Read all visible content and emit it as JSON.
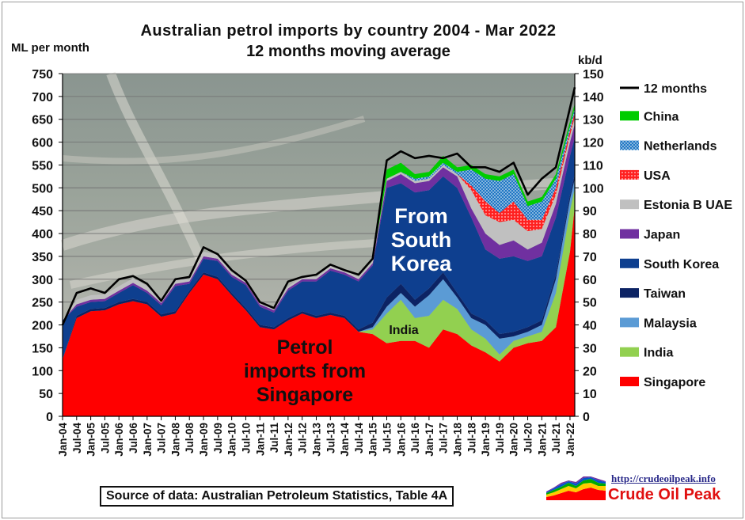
{
  "chart_data": {
    "type": "area",
    "title": "Australian petrol imports by country 2004 - Mar 2022",
    "subtitle": "12 months moving average",
    "ylabel_left": "ML per month",
    "ylabel_right": "kb/d",
    "ylim_left": [
      0,
      750
    ],
    "ylim_right": [
      0,
      150
    ],
    "yticks_left": [
      "0",
      "50",
      "100",
      "150",
      "200",
      "250",
      "300",
      "350",
      "400",
      "450",
      "500",
      "550",
      "600",
      "650",
      "700",
      "750"
    ],
    "yticks_right": [
      "0",
      "10",
      "20",
      "30",
      "40",
      "50",
      "60",
      "70",
      "80",
      "90",
      "100",
      "110",
      "120",
      "130",
      "140",
      "150"
    ],
    "xticks": [
      "Jan-04",
      "Jul-04",
      "Jan-05",
      "Jul-05",
      "Jan-06",
      "Jul-06",
      "Jan-07",
      "Jul-07",
      "Jan-08",
      "Jul-08",
      "Jan-09",
      "Jul-09",
      "Jan-10",
      "Jul-10",
      "Jan-11",
      "Jul-11",
      "Jan-12",
      "Jul-12",
      "Jan-13",
      "Jul-13",
      "Jan-14",
      "Jul-14",
      "Jan-15",
      "Jul-15",
      "Jan-16",
      "Jul-16",
      "Jan-17",
      "Jul-17",
      "Jan-18",
      "Jul-18",
      "Jan-19",
      "Jul-19",
      "Jan-20",
      "Jul-20",
      "Jan-21",
      "Jul-21",
      "Jan-22"
    ],
    "grid": true,
    "legend_position": "right",
    "x": [
      2004.0,
      2004.5,
      2005.0,
      2005.5,
      2006.0,
      2006.5,
      2007.0,
      2007.5,
      2008.0,
      2008.5,
      2009.0,
      2009.5,
      2010.0,
      2010.5,
      2011.0,
      2011.5,
      2012.0,
      2012.5,
      2013.0,
      2013.5,
      2014.0,
      2014.5,
      2015.0,
      2015.5,
      2016.0,
      2016.5,
      2017.0,
      2017.5,
      2018.0,
      2018.5,
      2019.0,
      2019.5,
      2020.0,
      2020.5,
      2021.0,
      2021.5,
      2022.0,
      2022.17
    ],
    "series": [
      {
        "name": "Singapore",
        "color": "#ff0000",
        "values": [
          125,
          215,
          230,
          232,
          245,
          252,
          245,
          218,
          225,
          270,
          310,
          300,
          265,
          232,
          195,
          190,
          210,
          225,
          215,
          222,
          215,
          185,
          180,
          160,
          165,
          165,
          150,
          190,
          180,
          155,
          140,
          120,
          150,
          160,
          165,
          195,
          360,
          460
        ]
      },
      {
        "name": "India",
        "color": "#92d050",
        "values": [
          0,
          0,
          0,
          0,
          0,
          0,
          0,
          0,
          0,
          0,
          0,
          0,
          0,
          0,
          0,
          0,
          0,
          0,
          0,
          0,
          0,
          0,
          10,
          65,
          90,
          50,
          70,
          65,
          55,
          35,
          30,
          15,
          15,
          15,
          20,
          75,
          90,
          40
        ]
      },
      {
        "name": "Malaysia",
        "color": "#5b9bd5",
        "values": [
          0,
          0,
          0,
          0,
          0,
          0,
          0,
          0,
          0,
          0,
          0,
          0,
          0,
          0,
          0,
          0,
          0,
          0,
          0,
          0,
          0,
          0,
          5,
          15,
          15,
          25,
          45,
          45,
          25,
          25,
          30,
          35,
          10,
          10,
          15,
          30,
          25,
          20
        ]
      },
      {
        "name": "Taiwan",
        "color": "#0c2364",
        "values": [
          0,
          5,
          5,
          5,
          5,
          5,
          5,
          5,
          5,
          5,
          5,
          5,
          5,
          5,
          5,
          5,
          5,
          5,
          5,
          5,
          5,
          5,
          10,
          20,
          20,
          15,
          15,
          15,
          10,
          10,
          10,
          10,
          10,
          10,
          10,
          10,
          10,
          10
        ]
      },
      {
        "name": "South Korea",
        "color": "#0e3f8f",
        "values": [
          85,
          20,
          15,
          15,
          20,
          30,
          20,
          20,
          55,
          15,
          30,
          35,
          35,
          50,
          40,
          32,
          60,
          65,
          75,
          92,
          90,
          105,
          125,
          240,
          220,
          235,
          215,
          210,
          230,
          210,
          155,
          165,
          165,
          145,
          140,
          125,
          85,
          80
        ]
      },
      {
        "name": "Japan",
        "color": "#7030a0",
        "values": [
          0,
          5,
          5,
          5,
          5,
          5,
          5,
          5,
          5,
          5,
          5,
          5,
          5,
          5,
          5,
          5,
          5,
          5,
          5,
          5,
          5,
          5,
          5,
          15,
          20,
          20,
          20,
          20,
          25,
          20,
          35,
          30,
          35,
          25,
          30,
          30,
          30,
          30
        ]
      },
      {
        "name": "Estonia B UAE",
        "color": "#c0c0c0",
        "values": [
          0,
          10,
          10,
          10,
          10,
          10,
          10,
          5,
          10,
          5,
          10,
          10,
          5,
          5,
          5,
          5,
          5,
          5,
          5,
          5,
          5,
          5,
          5,
          5,
          5,
          5,
          5,
          5,
          5,
          40,
          40,
          50,
          45,
          40,
          30,
          20,
          15,
          15
        ]
      },
      {
        "name": "USA",
        "color": "#ff2020",
        "values": [
          0,
          0,
          0,
          0,
          0,
          0,
          0,
          0,
          0,
          0,
          0,
          0,
          0,
          0,
          0,
          0,
          0,
          0,
          0,
          0,
          0,
          0,
          0,
          0,
          0,
          0,
          0,
          0,
          0,
          10,
          30,
          20,
          40,
          25,
          20,
          15,
          10,
          10
        ]
      },
      {
        "name": "Netherlands",
        "color": "#1f77c4",
        "values": [
          0,
          0,
          0,
          0,
          0,
          0,
          0,
          0,
          0,
          0,
          0,
          0,
          0,
          0,
          0,
          0,
          0,
          0,
          0,
          0,
          0,
          0,
          0,
          0,
          0,
          5,
          5,
          5,
          5,
          35,
          50,
          70,
          60,
          30,
          40,
          20,
          10,
          10
        ]
      },
      {
        "name": "China",
        "color": "#00cc00",
        "values": [
          0,
          0,
          0,
          0,
          0,
          0,
          0,
          0,
          0,
          0,
          0,
          0,
          0,
          0,
          0,
          0,
          0,
          0,
          0,
          0,
          0,
          0,
          0,
          20,
          20,
          10,
          10,
          15,
          10,
          10,
          10,
          10,
          10,
          10,
          10,
          10,
          10,
          10
        ]
      }
    ],
    "total_line": {
      "name": "12 months",
      "color": "#000000",
      "values": [
        200,
        270,
        280,
        270,
        300,
        307,
        290,
        253,
        300,
        305,
        370,
        355,
        320,
        297,
        250,
        237,
        295,
        305,
        310,
        332,
        320,
        310,
        345,
        560,
        580,
        565,
        570,
        565,
        575,
        545,
        545,
        535,
        555,
        485,
        520,
        545,
        675,
        720
      ]
    },
    "annotations": [
      "From South Korea",
      "Petrol imports from Singapore",
      "India"
    ]
  },
  "source_text": "Source of data: Australian Petroleum Statistics, Table 4A",
  "brand": {
    "url": "http://crudeoilpeak.info",
    "name": "Crude Oil Peak"
  },
  "annotation_labels": {
    "south_korea": [
      "From",
      "South",
      "Korea"
    ],
    "singapore": [
      "Petrol",
      "imports from",
      "Singapore"
    ],
    "india": "India"
  }
}
